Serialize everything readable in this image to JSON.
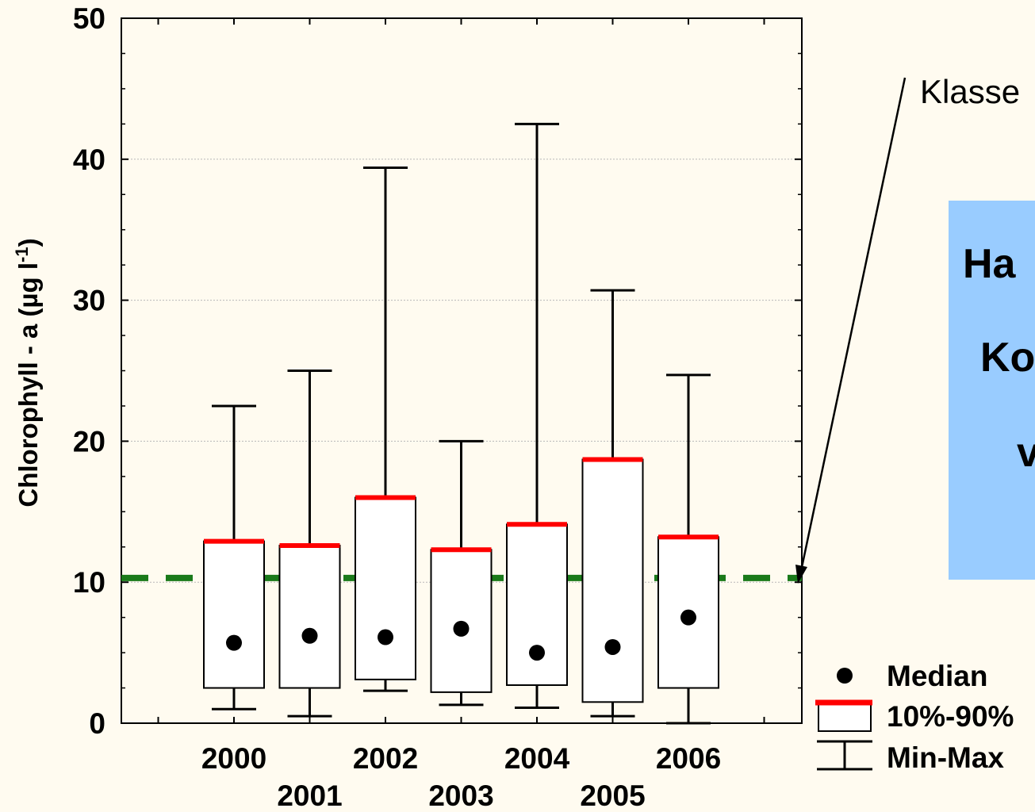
{
  "chart_data": {
    "type": "box",
    "ylabel": "Chlorophyll - a (µg l-1)",
    "ylabel_superscript": "-1",
    "ylim": [
      0,
      50
    ],
    "yticks": [
      0,
      10,
      20,
      30,
      40,
      50
    ],
    "grid": "horizontal dotted",
    "categories": [
      "2000",
      "2001",
      "2002",
      "2003",
      "2004",
      "2005",
      "2006"
    ],
    "boxes": [
      {
        "year": "2000",
        "min": 1.0,
        "p10": 2.5,
        "median": 5.7,
        "p90": 12.9,
        "max": 22.5
      },
      {
        "year": "2001",
        "min": 0.5,
        "p10": 2.5,
        "median": 6.2,
        "p90": 12.6,
        "max": 25.0
      },
      {
        "year": "2002",
        "min": 2.3,
        "p10": 3.1,
        "median": 6.1,
        "p90": 16.0,
        "max": 39.4
      },
      {
        "year": "2003",
        "min": 1.3,
        "p10": 2.2,
        "median": 6.7,
        "p90": 12.3,
        "max": 20.0
      },
      {
        "year": "2004",
        "min": 1.1,
        "p10": 2.7,
        "median": 5.0,
        "p90": 14.1,
        "max": 42.5
      },
      {
        "year": "2005",
        "min": 0.5,
        "p10": 1.5,
        "median": 5.4,
        "p90": 18.7,
        "max": 30.7
      },
      {
        "year": "2006",
        "min": 0.0,
        "p10": 2.5,
        "median": 7.5,
        "p90": 13.2,
        "max": 24.7
      }
    ],
    "threshold": {
      "value": 10.3,
      "style": "dashed",
      "color": "#1a7a1a"
    },
    "legend": {
      "placement": "bottom-right",
      "items": [
        "Median",
        "10%-90%",
        "Min-Max"
      ]
    },
    "annotation": {
      "text": "Klasse"
    }
  },
  "info_box": {
    "lines": [
      "Ha",
      "Ko",
      "v"
    ],
    "color": "#99ccff"
  },
  "colors": {
    "background": "#fffbf0",
    "p90_marker": "#ff0000",
    "threshold": "#1a7a1a",
    "box_fill": "#ffffff"
  }
}
